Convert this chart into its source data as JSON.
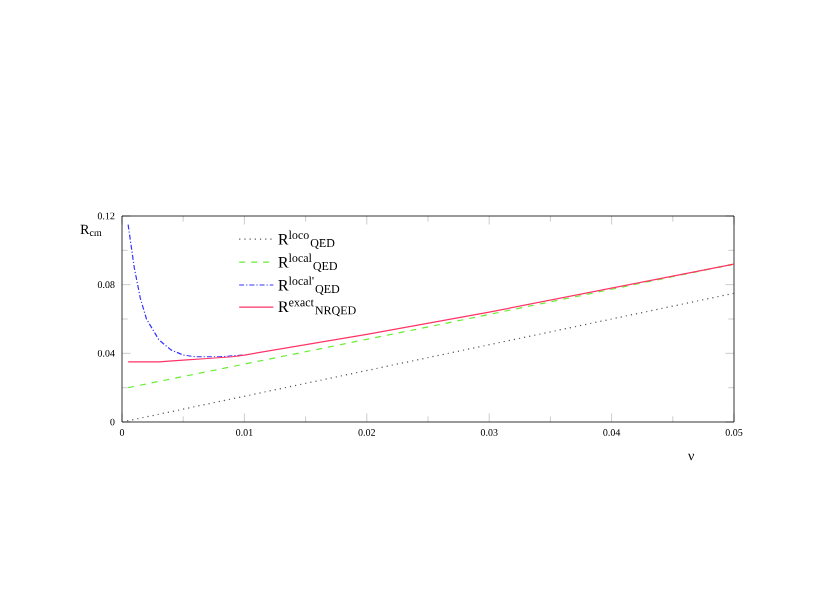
{
  "chart_data": {
    "type": "line",
    "xlabel": "ν",
    "ylabel": "R$_{cm}$",
    "xlim": [
      0,
      0.05
    ],
    "ylim": [
      0,
      0.12
    ],
    "xticks": [
      0,
      0.01,
      0.02,
      0.03,
      0.04,
      0.05
    ],
    "yticks": [
      0,
      0.04,
      0.08,
      0.12
    ],
    "grid": false,
    "legend": "top left",
    "series": [
      {
        "name": "R$^{loco}$$_{QED}$",
        "color": "#555555",
        "line_style": "dotted",
        "x": [
          0,
          0.05
        ],
        "values": [
          0,
          0.075
        ]
      },
      {
        "name": "R$^{local}$$_{QED}$",
        "color": "#66ee33",
        "line_style": "dashed",
        "x": [
          0.0005,
          0.0275,
          0.05
        ],
        "values": [
          0.02,
          0.059,
          0.092
        ]
      },
      {
        "name": "R$^{local'}$$_{QED}$",
        "color": "#3333ff",
        "line_style": "dashdot",
        "x": [
          0.0005,
          0.001,
          0.0015,
          0.002,
          0.003,
          0.004,
          0.005,
          0.006,
          0.008,
          0.01
        ],
        "values": [
          0.115,
          0.09,
          0.072,
          0.06,
          0.048,
          0.042,
          0.039,
          0.038,
          0.038,
          0.039
        ]
      },
      {
        "name": "R$^{exact}$$_{NRQED}$",
        "color": "#ff3366",
        "line_style": "solid",
        "x": [
          0.0005,
          0.003,
          0.005,
          0.007,
          0.009,
          0.01,
          0.02,
          0.03,
          0.04,
          0.05
        ],
        "values": [
          0.035,
          0.035,
          0.036,
          0.037,
          0.038,
          0.039,
          0.051,
          0.064,
          0.078,
          0.092
        ]
      }
    ]
  }
}
